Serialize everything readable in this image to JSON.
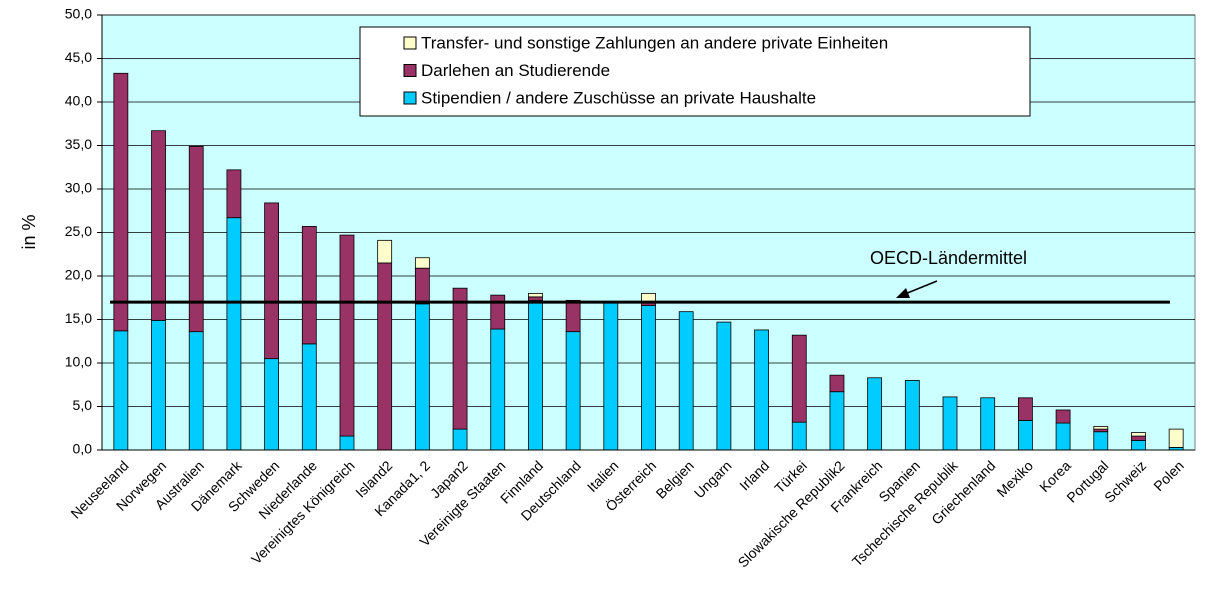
{
  "chart_data": {
    "type": "stacked_bar",
    "y_label": "in %",
    "categories": [
      "Neuseeland",
      "Norwegen",
      "Australien",
      "Dänemark",
      "Schweden",
      "Niederlande",
      "Vereinigtes Königreich",
      "Island2",
      "Kanada1, 2",
      "Japan2",
      "Vereinigte Staaten",
      "Finnland",
      "Deutschland",
      "Italien",
      "Österreich",
      "Belgien",
      "Ungarn",
      "Irland",
      "Türkei",
      "Slowakische Republik2",
      "Frankreich",
      "Spanien",
      "Tschechische Republik",
      "Griechenland",
      "Mexiko",
      "Korea",
      "Portugal",
      "Schweiz",
      "Polen"
    ],
    "series": [
      {
        "name": "Stipendien / andere Zuschüsse an private Haushalte",
        "color": "#00ccff",
        "values": [
          13.7,
          14.9,
          13.6,
          26.7,
          10.5,
          12.2,
          1.6,
          0,
          16.8,
          2.4,
          13.9,
          17.2,
          13.6,
          17.0,
          16.6,
          15.9,
          14.7,
          13.8,
          3.2,
          6.7,
          8.3,
          8.0,
          6.1,
          6.0,
          3.4,
          3.1,
          2.1,
          1.1,
          0.3
        ]
      },
      {
        "name": "Darlehen an Studierende",
        "color": "#993366",
        "values": [
          29.6,
          21.8,
          21.3,
          5.5,
          17.9,
          13.5,
          23.1,
          21.5,
          4.1,
          16.2,
          3.9,
          0.4,
          3.6,
          0,
          0.3,
          0,
          0,
          0,
          10.0,
          1.9,
          0,
          0,
          0,
          0,
          2.6,
          1.5,
          0.3,
          0.5,
          0
        ]
      },
      {
        "name": "Transfer- und sonstige Zahlungen an andere private Einheiten",
        "color": "#ffffcc",
        "values": [
          0,
          0,
          0,
          0,
          0,
          0,
          0,
          2.6,
          1.2,
          0,
          0,
          0.4,
          0,
          0,
          1.1,
          0,
          0,
          0,
          0,
          0,
          0,
          0,
          0,
          0,
          0,
          0,
          0.3,
          0.4,
          2.1
        ]
      }
    ],
    "reference_line": {
      "value": 17.0,
      "label": "OECD-Ländermittel"
    },
    "ylim": [
      0,
      50
    ],
    "yticks": [
      {
        "value": 0,
        "label": "0,0"
      },
      {
        "value": 5,
        "label": "5,0"
      },
      {
        "value": 10,
        "label": "10,0"
      },
      {
        "value": 15,
        "label": "15,0"
      },
      {
        "value": 20,
        "label": "20,0"
      },
      {
        "value": 25,
        "label": "25,0"
      },
      {
        "value": 30,
        "label": "30,0"
      },
      {
        "value": 35,
        "label": "35,0"
      },
      {
        "value": 40,
        "label": "40,0"
      },
      {
        "value": 45,
        "label": "45,0"
      },
      {
        "value": 50,
        "label": "50,0"
      }
    ],
    "grid": true
  }
}
